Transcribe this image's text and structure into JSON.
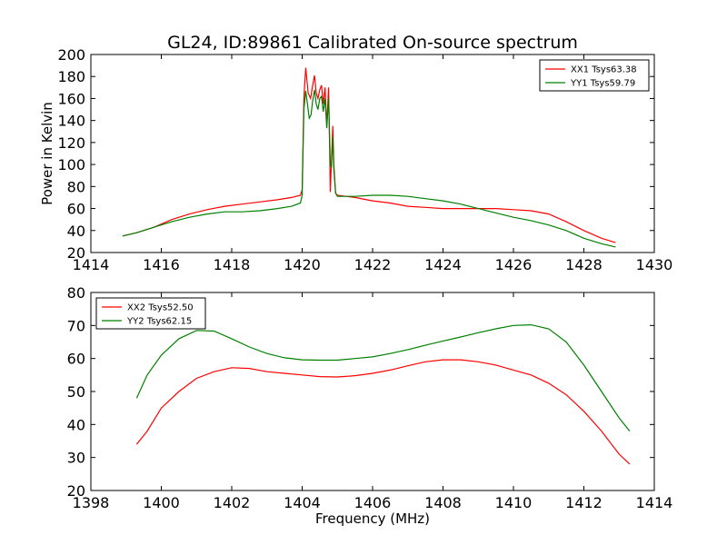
{
  "chart_data": {
    "title": "GL24, ID:89861 Calibrated On-source spectrum",
    "xlabel": "Frequency (MHz)",
    "panels": [
      {
        "type": "line",
        "ylabel": "Power in Kelvin",
        "xlim": [
          1414,
          1430
        ],
        "ylim": [
          20,
          200
        ],
        "xticks": [
          1414,
          1416,
          1418,
          1420,
          1422,
          1424,
          1426,
          1428,
          1430
        ],
        "yticks": [
          20,
          40,
          60,
          80,
          100,
          120,
          140,
          160,
          180,
          200
        ],
        "legend_position": "top-right",
        "series": [
          {
            "name": "XX1 Tsys63.38",
            "color": "#ff0000",
            "points": [
              [
                1414.9,
                35
              ],
              [
                1415.3,
                38
              ],
              [
                1415.8,
                43
              ],
              [
                1416.3,
                50
              ],
              [
                1416.8,
                55
              ],
              [
                1417.3,
                59
              ],
              [
                1417.8,
                62
              ],
              [
                1418.3,
                64
              ],
              [
                1418.8,
                66
              ],
              [
                1419.3,
                68
              ],
              [
                1419.7,
                70
              ],
              [
                1419.95,
                72
              ],
              [
                1420.0,
                77
              ],
              [
                1420.05,
                160
              ],
              [
                1420.1,
                188
              ],
              [
                1420.17,
                165
              ],
              [
                1420.24,
                160
              ],
              [
                1420.3,
                172
              ],
              [
                1420.35,
                181
              ],
              [
                1420.4,
                165
              ],
              [
                1420.45,
                160
              ],
              [
                1420.5,
                168
              ],
              [
                1420.55,
                172
              ],
              [
                1420.6,
                155
              ],
              [
                1420.65,
                170
              ],
              [
                1420.7,
                135
              ],
              [
                1420.75,
                170
              ],
              [
                1420.8,
                75
              ],
              [
                1420.83,
                103
              ],
              [
                1420.87,
                135
              ],
              [
                1420.9,
                100
              ],
              [
                1420.95,
                74
              ],
              [
                1421.0,
                72
              ],
              [
                1421.5,
                70
              ],
              [
                1422.0,
                67
              ],
              [
                1422.5,
                65
              ],
              [
                1423.0,
                62
              ],
              [
                1423.5,
                61
              ],
              [
                1424.0,
                60
              ],
              [
                1424.5,
                60
              ],
              [
                1425.0,
                60
              ],
              [
                1425.5,
                60
              ],
              [
                1426.0,
                59
              ],
              [
                1426.5,
                58
              ],
              [
                1427.0,
                55
              ],
              [
                1427.5,
                48
              ],
              [
                1428.0,
                40
              ],
              [
                1428.5,
                33
              ],
              [
                1428.9,
                29
              ]
            ]
          },
          {
            "name": "YY1 Tsys59.79",
            "color": "#008000",
            "points": [
              [
                1414.9,
                35
              ],
              [
                1415.3,
                38
              ],
              [
                1415.8,
                43
              ],
              [
                1416.3,
                48
              ],
              [
                1416.8,
                52
              ],
              [
                1417.3,
                55
              ],
              [
                1417.8,
                57
              ],
              [
                1418.3,
                57
              ],
              [
                1418.8,
                58
              ],
              [
                1419.3,
                60
              ],
              [
                1419.7,
                62
              ],
              [
                1419.95,
                65
              ],
              [
                1420.0,
                72
              ],
              [
                1420.05,
                150
              ],
              [
                1420.1,
                167
              ],
              [
                1420.15,
                155
              ],
              [
                1420.2,
                142
              ],
              [
                1420.25,
                145
              ],
              [
                1420.3,
                158
              ],
              [
                1420.35,
                168
              ],
              [
                1420.4,
                155
              ],
              [
                1420.45,
                150
              ],
              [
                1420.5,
                160
              ],
              [
                1420.55,
                162
              ],
              [
                1420.6,
                148
              ],
              [
                1420.65,
                160
              ],
              [
                1420.7,
                133
              ],
              [
                1420.75,
                160
              ],
              [
                1420.8,
                100
              ],
              [
                1420.83,
                97
              ],
              [
                1420.87,
                125
              ],
              [
                1420.9,
                95
              ],
              [
                1420.95,
                74
              ],
              [
                1421.0,
                71
              ],
              [
                1421.5,
                71
              ],
              [
                1422.0,
                72
              ],
              [
                1422.5,
                72
              ],
              [
                1423.0,
                71
              ],
              [
                1423.5,
                69
              ],
              [
                1424.0,
                67
              ],
              [
                1424.5,
                64
              ],
              [
                1425.0,
                60
              ],
              [
                1425.5,
                56
              ],
              [
                1426.0,
                52
              ],
              [
                1426.5,
                49
              ],
              [
                1427.0,
                45
              ],
              [
                1427.5,
                40
              ],
              [
                1428.0,
                33
              ],
              [
                1428.5,
                28
              ],
              [
                1428.9,
                25
              ]
            ]
          }
        ]
      },
      {
        "type": "line",
        "ylabel": "",
        "xlim": [
          1398,
          1414
        ],
        "ylim": [
          20,
          80
        ],
        "xticks": [
          1398,
          1400,
          1402,
          1404,
          1406,
          1408,
          1410,
          1412,
          1414
        ],
        "yticks": [
          20,
          30,
          40,
          50,
          60,
          70,
          80
        ],
        "legend_position": "top-left",
        "series": [
          {
            "name": "XX2 Tsys52.50",
            "color": "#ff0000",
            "points": [
              [
                1399.3,
                34
              ],
              [
                1399.6,
                38
              ],
              [
                1400.0,
                45
              ],
              [
                1400.5,
                50
              ],
              [
                1401.0,
                54
              ],
              [
                1401.5,
                56
              ],
              [
                1402.0,
                57.2
              ],
              [
                1402.5,
                57
              ],
              [
                1403.0,
                56
              ],
              [
                1403.5,
                55.5
              ],
              [
                1404.0,
                55
              ],
              [
                1404.5,
                54.5
              ],
              [
                1405.0,
                54.4
              ],
              [
                1405.5,
                54.8
              ],
              [
                1406.0,
                55.5
              ],
              [
                1406.5,
                56.5
              ],
              [
                1407.0,
                57.8
              ],
              [
                1407.5,
                59
              ],
              [
                1408.0,
                59.6
              ],
              [
                1408.5,
                59.6
              ],
              [
                1409.0,
                59
              ],
              [
                1409.5,
                58
              ],
              [
                1410.0,
                56.5
              ],
              [
                1410.5,
                55
              ],
              [
                1411.0,
                52.5
              ],
              [
                1411.5,
                49
              ],
              [
                1412.0,
                44
              ],
              [
                1412.5,
                38
              ],
              [
                1413.0,
                31
              ],
              [
                1413.3,
                28
              ]
            ]
          },
          {
            "name": "YY2 Tsys62.15",
            "color": "#008000",
            "points": [
              [
                1399.3,
                48
              ],
              [
                1399.6,
                55
              ],
              [
                1400.0,
                61
              ],
              [
                1400.5,
                66
              ],
              [
                1401.0,
                68.5
              ],
              [
                1401.5,
                68.3
              ],
              [
                1402.0,
                66
              ],
              [
                1402.5,
                63.5
              ],
              [
                1403.0,
                61.5
              ],
              [
                1403.5,
                60.2
              ],
              [
                1404.0,
                59.6
              ],
              [
                1404.5,
                59.5
              ],
              [
                1405.0,
                59.5
              ],
              [
                1405.5,
                60
              ],
              [
                1406.0,
                60.5
              ],
              [
                1406.5,
                61.5
              ],
              [
                1407.0,
                62.7
              ],
              [
                1407.5,
                64
              ],
              [
                1408.0,
                65.3
              ],
              [
                1408.5,
                66.5
              ],
              [
                1409.0,
                67.8
              ],
              [
                1409.5,
                69
              ],
              [
                1410.0,
                70
              ],
              [
                1410.5,
                70.2
              ],
              [
                1411.0,
                69
              ],
              [
                1411.5,
                65
              ],
              [
                1412.0,
                58
              ],
              [
                1412.5,
                50
              ],
              [
                1413.0,
                42
              ],
              [
                1413.3,
                38
              ]
            ]
          }
        ]
      }
    ]
  }
}
